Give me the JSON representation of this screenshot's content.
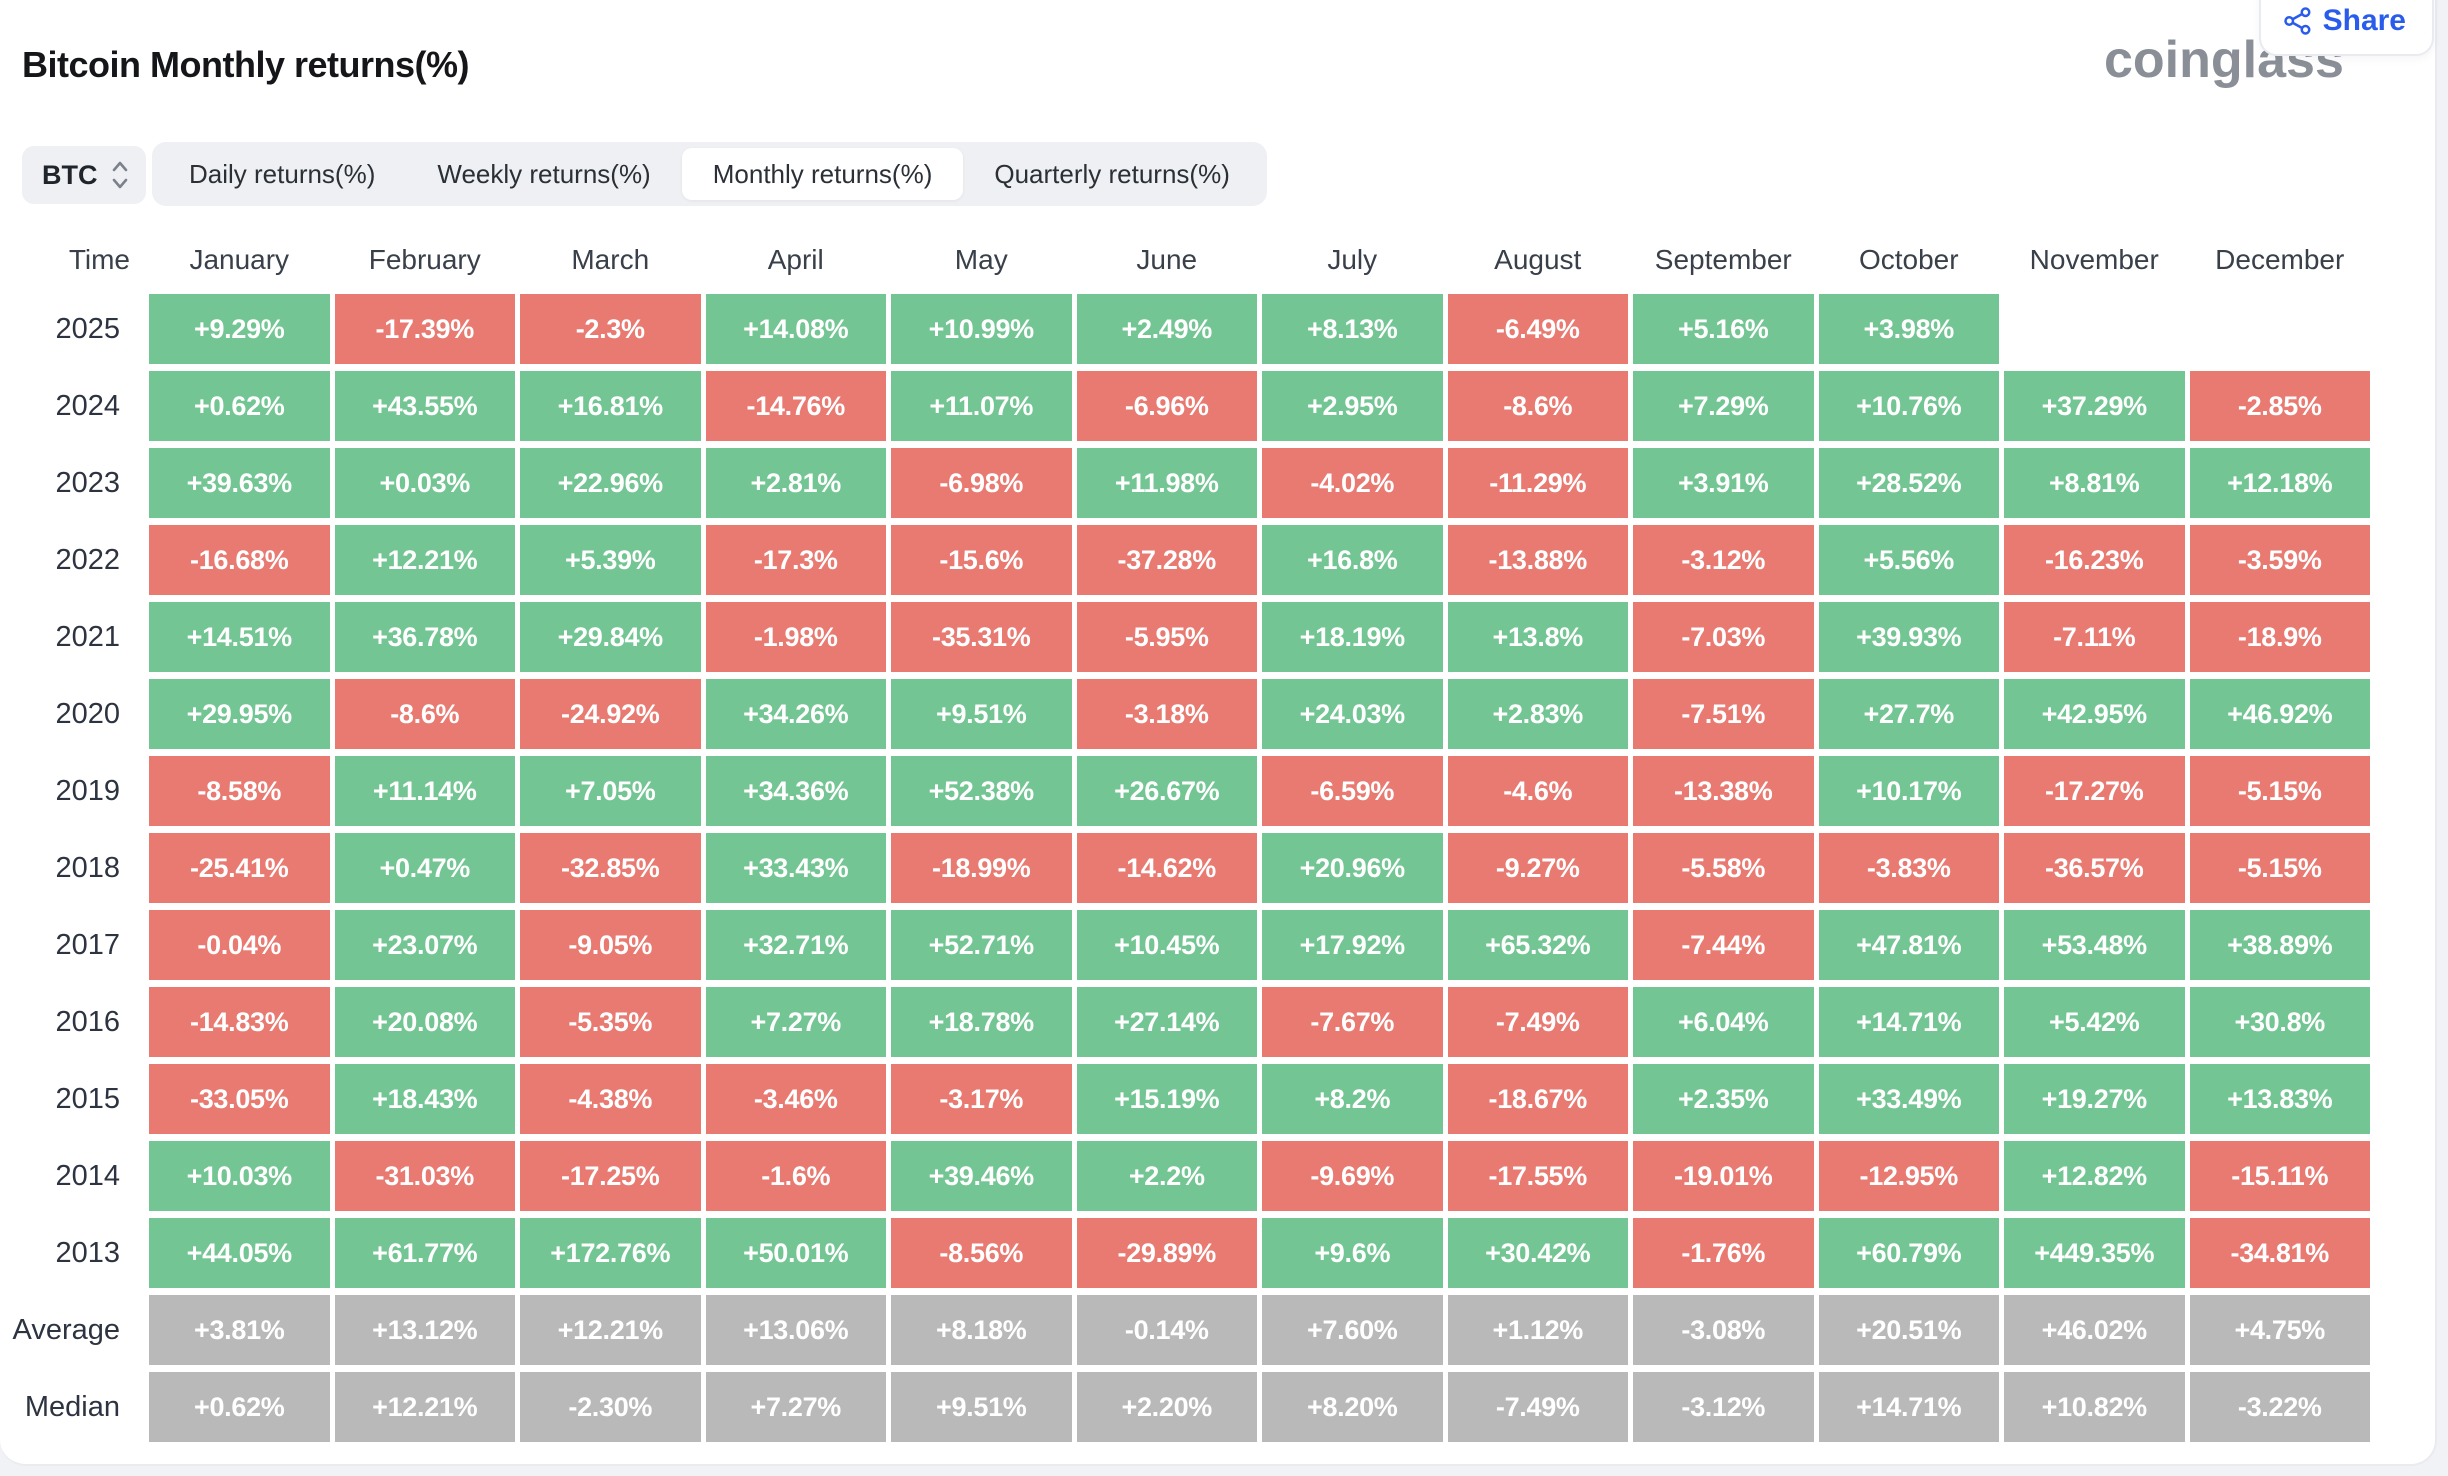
{
  "header": {
    "title": "Bitcoin Monthly returns(%)",
    "logo": "coinglass",
    "share_label": "Share",
    "share_color": "#2a5cec"
  },
  "controls": {
    "symbol": "BTC",
    "tabs": [
      "Daily returns(%)",
      "Weekly returns(%)",
      "Monthly returns(%)",
      "Quarterly returns(%)"
    ],
    "active_tab": "Monthly returns(%)"
  },
  "colors": {
    "positive": "#73c693",
    "negative": "#e97a72",
    "neutral": "#b9b9b9"
  },
  "chart_data": {
    "type": "heatmap",
    "title": "Bitcoin Monthly returns(%)",
    "unit": "percent",
    "columns": [
      "Time",
      "January",
      "February",
      "March",
      "April",
      "May",
      "June",
      "July",
      "August",
      "September",
      "October",
      "November",
      "December"
    ],
    "color_rule": "positive values green, negative values red, summary rows gray, missing months blank",
    "rows": [
      {
        "label": "2025",
        "summary": false,
        "values": [
          "+9.29%",
          "-17.39%",
          "-2.3%",
          "+14.08%",
          "+10.99%",
          "+2.49%",
          "+8.13%",
          "-6.49%",
          "+5.16%",
          "+3.98%",
          "",
          ""
        ]
      },
      {
        "label": "2024",
        "summary": false,
        "values": [
          "+0.62%",
          "+43.55%",
          "+16.81%",
          "-14.76%",
          "+11.07%",
          "-6.96%",
          "+2.95%",
          "-8.6%",
          "+7.29%",
          "+10.76%",
          "+37.29%",
          "-2.85%"
        ]
      },
      {
        "label": "2023",
        "summary": false,
        "values": [
          "+39.63%",
          "+0.03%",
          "+22.96%",
          "+2.81%",
          "-6.98%",
          "+11.98%",
          "-4.02%",
          "-11.29%",
          "+3.91%",
          "+28.52%",
          "+8.81%",
          "+12.18%"
        ]
      },
      {
        "label": "2022",
        "summary": false,
        "values": [
          "-16.68%",
          "+12.21%",
          "+5.39%",
          "-17.3%",
          "-15.6%",
          "-37.28%",
          "+16.8%",
          "-13.88%",
          "-3.12%",
          "+5.56%",
          "-16.23%",
          "-3.59%"
        ]
      },
      {
        "label": "2021",
        "summary": false,
        "values": [
          "+14.51%",
          "+36.78%",
          "+29.84%",
          "-1.98%",
          "-35.31%",
          "-5.95%",
          "+18.19%",
          "+13.8%",
          "-7.03%",
          "+39.93%",
          "-7.11%",
          "-18.9%"
        ]
      },
      {
        "label": "2020",
        "summary": false,
        "values": [
          "+29.95%",
          "-8.6%",
          "-24.92%",
          "+34.26%",
          "+9.51%",
          "-3.18%",
          "+24.03%",
          "+2.83%",
          "-7.51%",
          "+27.7%",
          "+42.95%",
          "+46.92%"
        ]
      },
      {
        "label": "2019",
        "summary": false,
        "values": [
          "-8.58%",
          "+11.14%",
          "+7.05%",
          "+34.36%",
          "+52.38%",
          "+26.67%",
          "-6.59%",
          "-4.6%",
          "-13.38%",
          "+10.17%",
          "-17.27%",
          "-5.15%"
        ]
      },
      {
        "label": "2018",
        "summary": false,
        "values": [
          "-25.41%",
          "+0.47%",
          "-32.85%",
          "+33.43%",
          "-18.99%",
          "-14.62%",
          "+20.96%",
          "-9.27%",
          "-5.58%",
          "-3.83%",
          "-36.57%",
          "-5.15%"
        ]
      },
      {
        "label": "2017",
        "summary": false,
        "values": [
          "-0.04%",
          "+23.07%",
          "-9.05%",
          "+32.71%",
          "+52.71%",
          "+10.45%",
          "+17.92%",
          "+65.32%",
          "-7.44%",
          "+47.81%",
          "+53.48%",
          "+38.89%"
        ]
      },
      {
        "label": "2016",
        "summary": false,
        "values": [
          "-14.83%",
          "+20.08%",
          "-5.35%",
          "+7.27%",
          "+18.78%",
          "+27.14%",
          "-7.67%",
          "-7.49%",
          "+6.04%",
          "+14.71%",
          "+5.42%",
          "+30.8%"
        ]
      },
      {
        "label": "2015",
        "summary": false,
        "values": [
          "-33.05%",
          "+18.43%",
          "-4.38%",
          "-3.46%",
          "-3.17%",
          "+15.19%",
          "+8.2%",
          "-18.67%",
          "+2.35%",
          "+33.49%",
          "+19.27%",
          "+13.83%"
        ]
      },
      {
        "label": "2014",
        "summary": false,
        "values": [
          "+10.03%",
          "-31.03%",
          "-17.25%",
          "-1.6%",
          "+39.46%",
          "+2.2%",
          "-9.69%",
          "-17.55%",
          "-19.01%",
          "-12.95%",
          "+12.82%",
          "-15.11%"
        ]
      },
      {
        "label": "2013",
        "summary": false,
        "values": [
          "+44.05%",
          "+61.77%",
          "+172.76%",
          "+50.01%",
          "-8.56%",
          "-29.89%",
          "+9.6%",
          "+30.42%",
          "-1.76%",
          "+60.79%",
          "+449.35%",
          "-34.81%"
        ]
      },
      {
        "label": "Average",
        "summary": true,
        "values": [
          "+3.81%",
          "+13.12%",
          "+12.21%",
          "+13.06%",
          "+8.18%",
          "-0.14%",
          "+7.60%",
          "+1.12%",
          "-3.08%",
          "+20.51%",
          "+46.02%",
          "+4.75%"
        ]
      },
      {
        "label": "Median",
        "summary": true,
        "values": [
          "+0.62%",
          "+12.21%",
          "-2.30%",
          "+7.27%",
          "+9.51%",
          "+2.20%",
          "+8.20%",
          "-7.49%",
          "-3.12%",
          "+14.71%",
          "+10.82%",
          "-3.22%"
        ]
      }
    ]
  }
}
